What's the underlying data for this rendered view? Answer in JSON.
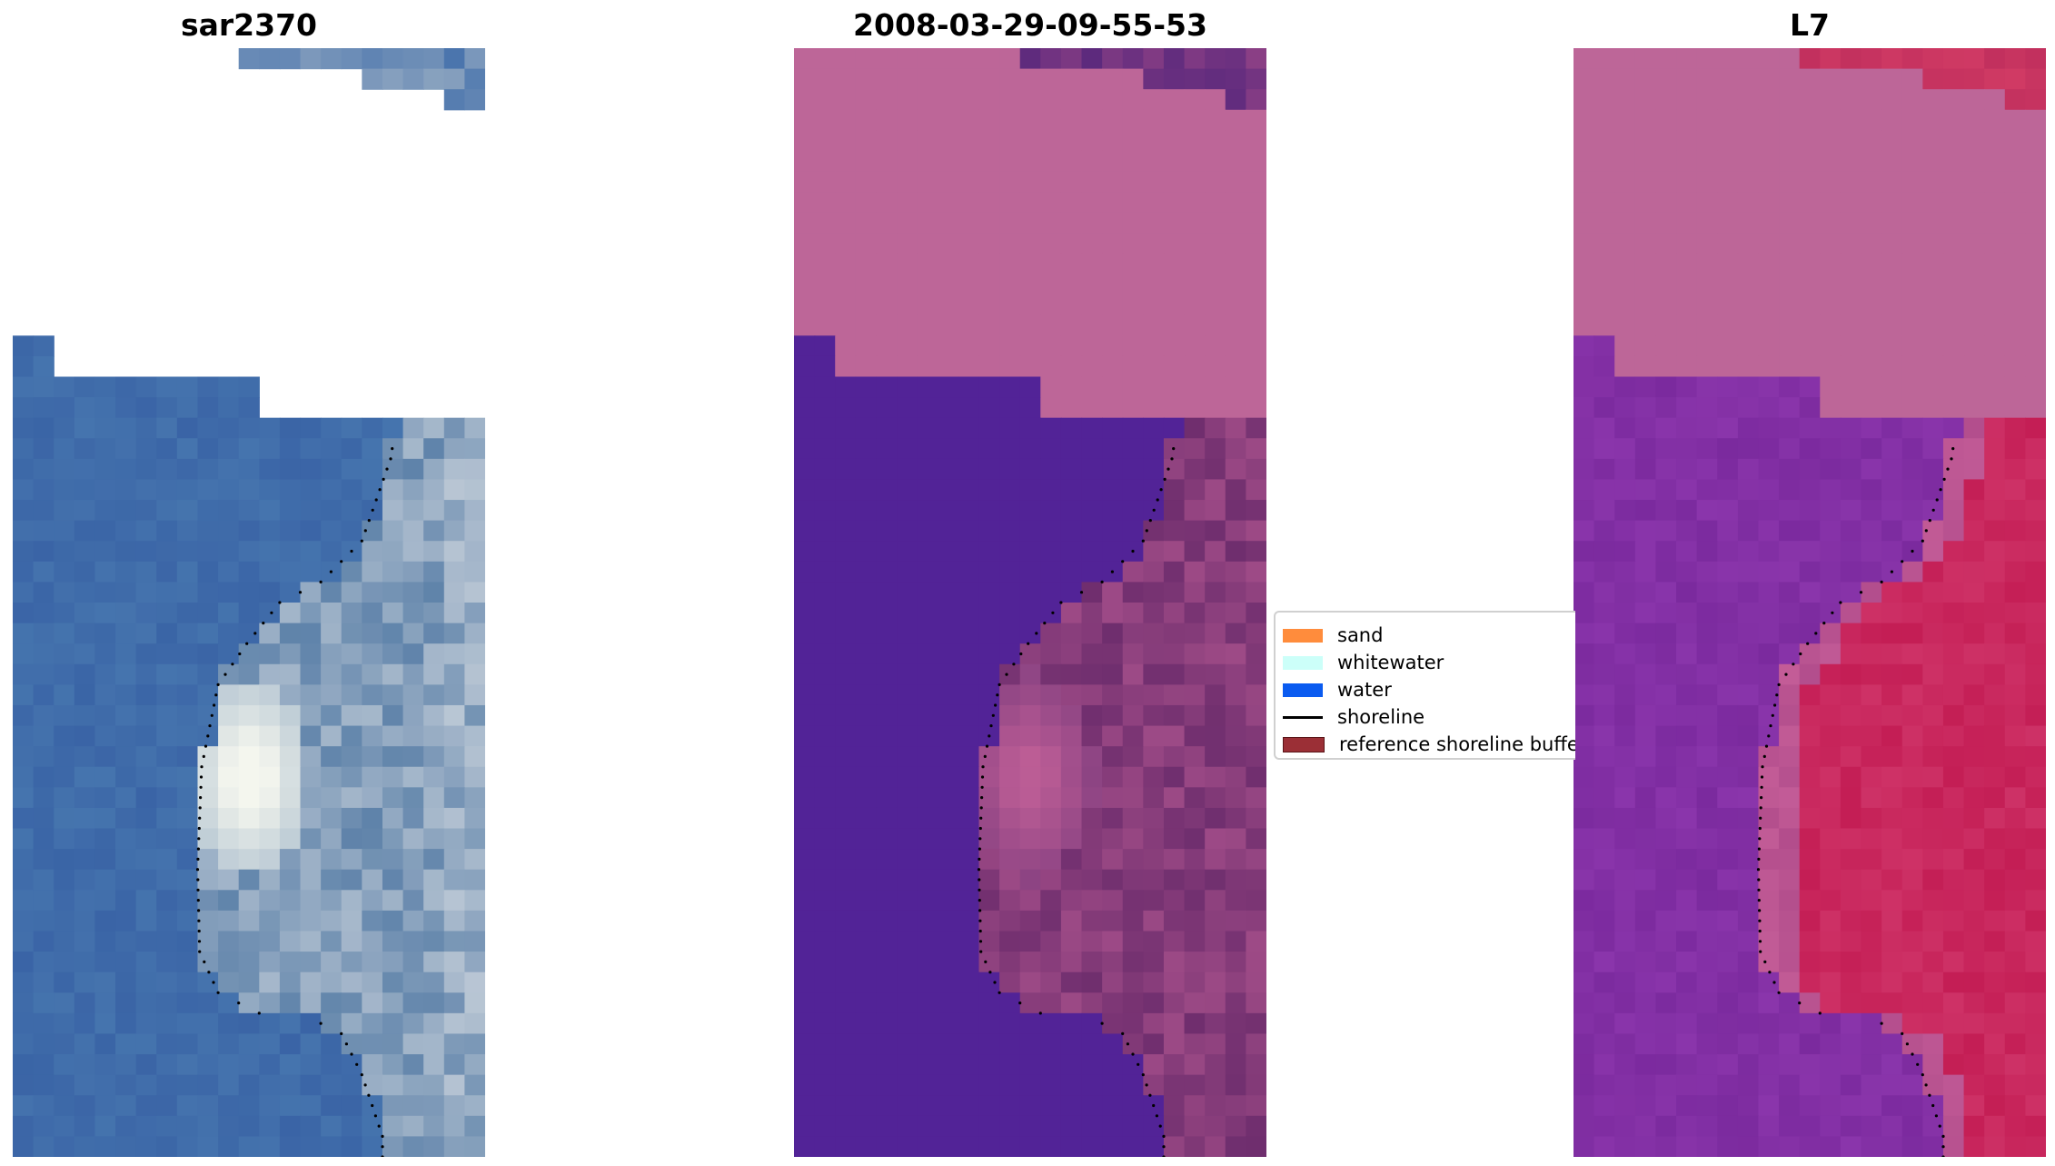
{
  "figure": {
    "panels": [
      {
        "title": "sar2370"
      },
      {
        "title": "2008-03-29-09-55-53"
      },
      {
        "title": "L7"
      }
    ],
    "legend": {
      "items": [
        {
          "label": "sand",
          "color": "#ff8c3c",
          "kind": "patch"
        },
        {
          "label": "whitewater",
          "color": "#ccfff9",
          "kind": "patch"
        },
        {
          "label": "water",
          "color": "#0a5bf0",
          "kind": "patch"
        },
        {
          "label": "shoreline",
          "color": "#000000",
          "kind": "line"
        },
        {
          "label": "reference shoreline buffer",
          "color": "#9b2f36",
          "kind": "patch"
        }
      ]
    },
    "colors": {
      "pink_nodata": "#bd6698",
      "purple_water": "#522397",
      "blue_water": "#3a64a6",
      "crimson_land": "#c5245a",
      "violet_water": "#8030a4"
    }
  }
}
